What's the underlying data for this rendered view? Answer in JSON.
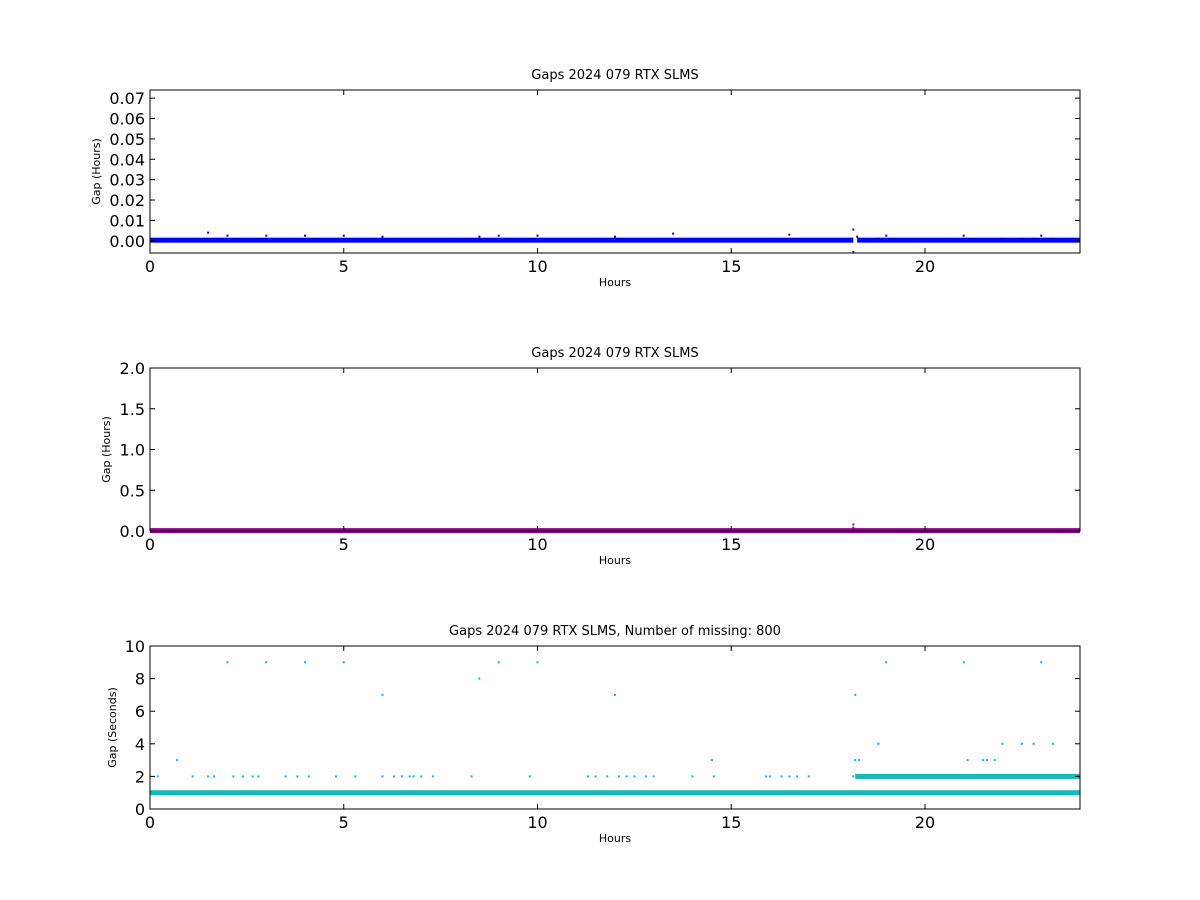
{
  "chart_data": [
    {
      "type": "scatter",
      "title": "Gaps 2024 079 RTX  SLMS",
      "xlabel": "Hours",
      "ylabel": "Gap (Hours)",
      "xlim": [
        0,
        24
      ],
      "ylim": [
        -0.006,
        0.074
      ],
      "xticks": [
        0,
        5,
        10,
        15,
        20
      ],
      "yticks": [
        0.0,
        0.01,
        0.02,
        0.03,
        0.04,
        0.05,
        0.06,
        0.07
      ],
      "ytick_labels": [
        "0.00",
        "0.01",
        "0.02",
        "0.03",
        "0.04",
        "0.05",
        "0.06",
        "0.07"
      ],
      "grid": false,
      "color": "#0000ff",
      "baseline": {
        "y": 0.0003,
        "x_ranges": [
          [
            0,
            18.15
          ],
          [
            18.25,
            24
          ]
        ]
      },
      "points": [
        {
          "x": 1.5,
          "y": 0.004
        },
        {
          "x": 2.0,
          "y": 0.0025
        },
        {
          "x": 3.0,
          "y": 0.0025
        },
        {
          "x": 4.0,
          "y": 0.0025
        },
        {
          "x": 5.0,
          "y": 0.0025
        },
        {
          "x": 6.0,
          "y": 0.002
        },
        {
          "x": 8.5,
          "y": 0.002
        },
        {
          "x": 9.0,
          "y": 0.0025
        },
        {
          "x": 10.0,
          "y": 0.0025
        },
        {
          "x": 12.0,
          "y": 0.002
        },
        {
          "x": 13.5,
          "y": 0.0035
        },
        {
          "x": 16.5,
          "y": 0.003
        },
        {
          "x": 18.15,
          "y": 0.0055
        },
        {
          "x": 18.15,
          "y": -0.0055
        },
        {
          "x": 18.25,
          "y": 0.002
        },
        {
          "x": 18.8,
          "y": 0.001
        },
        {
          "x": 19.0,
          "y": 0.0025
        },
        {
          "x": 21.0,
          "y": 0.0025
        },
        {
          "x": 22.0,
          "y": 0.001
        },
        {
          "x": 22.5,
          "y": 0.001
        },
        {
          "x": 22.8,
          "y": 0.001
        },
        {
          "x": 23.0,
          "y": 0.0025
        },
        {
          "x": 23.3,
          "y": 0.001
        }
      ]
    },
    {
      "type": "scatter",
      "title": "Gaps 2024 079 RTX  SLMS",
      "xlabel": "Hours",
      "ylabel": "Gap (Hours)",
      "xlim": [
        0,
        24
      ],
      "ylim": [
        0,
        2.0
      ],
      "xticks": [
        0,
        5,
        10,
        15,
        20
      ],
      "yticks": [
        0.0,
        0.5,
        1.0,
        1.5,
        2.0
      ],
      "ytick_labels": [
        "0.0",
        "0.5",
        "1.0",
        "1.5",
        "2.0"
      ],
      "grid": false,
      "color": "#990099",
      "baseline": {
        "y": 0.005,
        "x_ranges": [
          [
            0,
            24
          ]
        ]
      },
      "points": [
        {
          "x": 18.15,
          "y": 0.08
        },
        {
          "x": 18.15,
          "y": 0.04
        }
      ]
    },
    {
      "type": "scatter",
      "title": "Gaps 2024 079 RTX  SLMS, Number of missing: 800",
      "xlabel": "Hours",
      "ylabel": "Gap (Seconds)",
      "xlim": [
        0,
        24
      ],
      "ylim": [
        0,
        10
      ],
      "xticks": [
        0,
        5,
        10,
        15,
        20
      ],
      "yticks": [
        0,
        2,
        4,
        6,
        8,
        10
      ],
      "ytick_labels": [
        "0",
        "2",
        "4",
        "6",
        "8",
        "10"
      ],
      "grid": false,
      "color": "#11bbbb",
      "baseline": {
        "y": 1,
        "x_ranges": [
          [
            0,
            24
          ]
        ]
      },
      "baseline2": {
        "y": 2,
        "x_ranges": [
          [
            18.2,
            24
          ]
        ]
      },
      "points": [
        {
          "x": 0.2,
          "y": 2
        },
        {
          "x": 0.7,
          "y": 3
        },
        {
          "x": 1.1,
          "y": 2
        },
        {
          "x": 1.5,
          "y": 2
        },
        {
          "x": 1.65,
          "y": 2
        },
        {
          "x": 2.0,
          "y": 9
        },
        {
          "x": 2.15,
          "y": 2
        },
        {
          "x": 2.4,
          "y": 2
        },
        {
          "x": 2.65,
          "y": 2
        },
        {
          "x": 2.8,
          "y": 2
        },
        {
          "x": 3.0,
          "y": 9
        },
        {
          "x": 3.5,
          "y": 2
        },
        {
          "x": 3.8,
          "y": 2
        },
        {
          "x": 4.0,
          "y": 9
        },
        {
          "x": 4.1,
          "y": 2
        },
        {
          "x": 4.8,
          "y": 2
        },
        {
          "x": 5.0,
          "y": 9
        },
        {
          "x": 5.3,
          "y": 2
        },
        {
          "x": 6.0,
          "y": 7
        },
        {
          "x": 6.0,
          "y": 2
        },
        {
          "x": 6.3,
          "y": 2
        },
        {
          "x": 6.5,
          "y": 2
        },
        {
          "x": 6.7,
          "y": 2
        },
        {
          "x": 6.8,
          "y": 2
        },
        {
          "x": 7.0,
          "y": 2
        },
        {
          "x": 7.3,
          "y": 2
        },
        {
          "x": 8.3,
          "y": 2
        },
        {
          "x": 8.5,
          "y": 8
        },
        {
          "x": 9.0,
          "y": 9
        },
        {
          "x": 9.8,
          "y": 2
        },
        {
          "x": 10.0,
          "y": 9
        },
        {
          "x": 11.3,
          "y": 2
        },
        {
          "x": 11.5,
          "y": 2
        },
        {
          "x": 11.8,
          "y": 2
        },
        {
          "x": 12.0,
          "y": 7
        },
        {
          "x": 12.1,
          "y": 2
        },
        {
          "x": 12.3,
          "y": 2
        },
        {
          "x": 12.5,
          "y": 2
        },
        {
          "x": 12.8,
          "y": 2
        },
        {
          "x": 13.0,
          "y": 2
        },
        {
          "x": 14.0,
          "y": 2
        },
        {
          "x": 14.5,
          "y": 3
        },
        {
          "x": 14.55,
          "y": 2
        },
        {
          "x": 15.9,
          "y": 2
        },
        {
          "x": 16.0,
          "y": 2
        },
        {
          "x": 16.3,
          "y": 2
        },
        {
          "x": 16.5,
          "y": 2
        },
        {
          "x": 16.7,
          "y": 2
        },
        {
          "x": 17.0,
          "y": 2
        },
        {
          "x": 18.15,
          "y": 2
        },
        {
          "x": 18.2,
          "y": 7
        },
        {
          "x": 18.2,
          "y": 3
        },
        {
          "x": 18.3,
          "y": 3
        },
        {
          "x": 18.8,
          "y": 4
        },
        {
          "x": 19.0,
          "y": 9
        },
        {
          "x": 21.0,
          "y": 9
        },
        {
          "x": 21.1,
          "y": 3
        },
        {
          "x": 21.5,
          "y": 3
        },
        {
          "x": 21.6,
          "y": 3
        },
        {
          "x": 21.8,
          "y": 3
        },
        {
          "x": 22.0,
          "y": 4
        },
        {
          "x": 22.5,
          "y": 4
        },
        {
          "x": 22.8,
          "y": 4
        },
        {
          "x": 23.0,
          "y": 9
        },
        {
          "x": 23.3,
          "y": 4
        }
      ]
    }
  ]
}
